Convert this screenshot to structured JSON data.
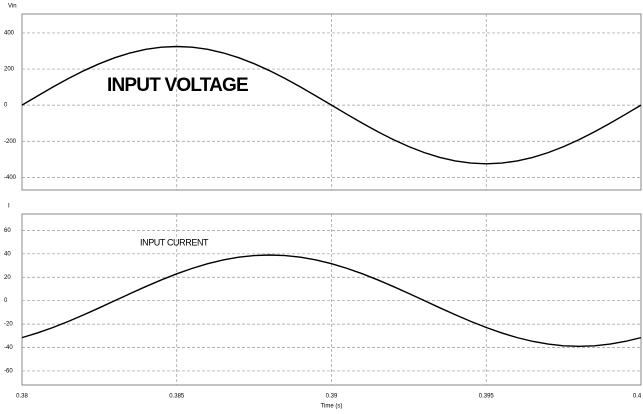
{
  "chart_data": [
    {
      "type": "line",
      "ylabel": "Vin",
      "annotation": "INPUT VOLTAGE",
      "xlim": [
        0.38,
        0.4
      ],
      "ylim": [
        -470,
        505
      ],
      "yticks": [
        -400,
        -200,
        0,
        200,
        400
      ],
      "grid": true,
      "x": [
        0.38,
        0.3805,
        0.381,
        0.3815,
        0.382,
        0.3825,
        0.383,
        0.3835,
        0.384,
        0.3845,
        0.385,
        0.3855,
        0.386,
        0.3865,
        0.387,
        0.3875,
        0.388,
        0.3885,
        0.389,
        0.3895,
        0.39,
        0.3905,
        0.391,
        0.3915,
        0.392,
        0.3925,
        0.393,
        0.3935,
        0.394,
        0.3945,
        0.395,
        0.3955,
        0.396,
        0.3965,
        0.397,
        0.3975,
        0.398,
        0.3985,
        0.399,
        0.3995,
        0.4
      ],
      "series": [
        {
          "name": "Vin",
          "color": "#000000",
          "values": [
            0,
            50.8,
            100.4,
            147.6,
            191,
            229.8,
            262.9,
            289.6,
            309.1,
            321,
            325,
            321,
            309.1,
            289.6,
            262.9,
            229.8,
            191,
            147.6,
            100.4,
            50.8,
            0,
            -50.8,
            -100.4,
            -147.6,
            -191,
            -229.8,
            -262.9,
            -289.6,
            -309.1,
            -321,
            -325,
            -321,
            -309.1,
            -289.6,
            -262.9,
            -229.8,
            -191,
            -147.6,
            -100.4,
            -50.8,
            0
          ]
        }
      ]
    },
    {
      "type": "line",
      "ylabel": "I",
      "xlabel": "Time (s)",
      "annotation": "INPUT CURRENT",
      "xlim": [
        0.38,
        0.4
      ],
      "xticks": [
        0.38,
        0.385,
        0.39,
        0.395,
        0.4
      ],
      "ylim": [
        -72,
        74
      ],
      "yticks": [
        -60,
        -40,
        -20,
        0,
        20,
        40,
        60
      ],
      "grid": true,
      "x": [
        0.38,
        0.3805,
        0.381,
        0.3815,
        0.382,
        0.3825,
        0.383,
        0.3835,
        0.384,
        0.3845,
        0.385,
        0.3855,
        0.386,
        0.3865,
        0.387,
        0.3875,
        0.388,
        0.3885,
        0.389,
        0.3895,
        0.39,
        0.3905,
        0.391,
        0.3915,
        0.392,
        0.3925,
        0.393,
        0.3935,
        0.394,
        0.3945,
        0.395,
        0.3955,
        0.396,
        0.3965,
        0.397,
        0.3975,
        0.398,
        0.3985,
        0.399,
        0.3995,
        0.4
      ],
      "series": [
        {
          "name": "I",
          "color": "#000000",
          "values": [
            -31.55,
            -27.58,
            -22.92,
            -17.71,
            -12.05,
            -6.1,
            0,
            6.1,
            12.05,
            17.71,
            22.92,
            27.58,
            31.55,
            34.75,
            37.09,
            38.52,
            39,
            38.52,
            37.09,
            34.75,
            31.55,
            27.58,
            22.92,
            17.71,
            12.05,
            6.1,
            0,
            -6.1,
            -12.05,
            -17.71,
            -22.92,
            -27.58,
            -31.55,
            -34.75,
            -37.09,
            -38.52,
            -39,
            -38.52,
            -37.09,
            -34.75,
            -31.55
          ]
        }
      ]
    }
  ]
}
